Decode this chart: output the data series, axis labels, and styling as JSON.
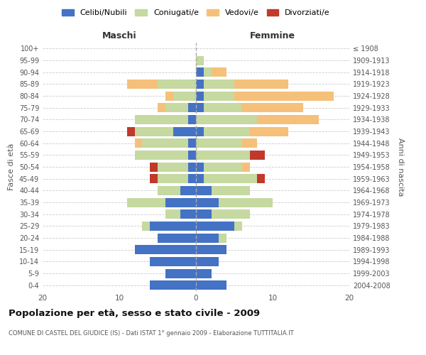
{
  "age_groups": [
    "0-4",
    "5-9",
    "10-14",
    "15-19",
    "20-24",
    "25-29",
    "30-34",
    "35-39",
    "40-44",
    "45-49",
    "50-54",
    "55-59",
    "60-64",
    "65-69",
    "70-74",
    "75-79",
    "80-84",
    "85-89",
    "90-94",
    "95-99",
    "100+"
  ],
  "birth_years": [
    "2004-2008",
    "1999-2003",
    "1994-1998",
    "1989-1993",
    "1984-1988",
    "1979-1983",
    "1974-1978",
    "1969-1973",
    "1964-1968",
    "1959-1963",
    "1954-1958",
    "1949-1953",
    "1944-1948",
    "1939-1943",
    "1934-1938",
    "1929-1933",
    "1924-1928",
    "1919-1923",
    "1914-1918",
    "1909-1913",
    "≤ 1908"
  ],
  "colors": {
    "celibi": "#4472c4",
    "coniugati": "#c5d9a0",
    "vedovi": "#f5c07a",
    "divorziati": "#c0392b"
  },
  "maschi": {
    "celibi": [
      6,
      4,
      6,
      8,
      5,
      6,
      2,
      4,
      2,
      1,
      1,
      1,
      1,
      3,
      1,
      1,
      0,
      0,
      0,
      0,
      0
    ],
    "coniugati": [
      0,
      0,
      0,
      0,
      0,
      1,
      2,
      5,
      3,
      4,
      4,
      7,
      6,
      5,
      7,
      3,
      3,
      5,
      0,
      0,
      0
    ],
    "vedovi": [
      0,
      0,
      0,
      0,
      0,
      0,
      0,
      0,
      0,
      0,
      0,
      0,
      1,
      0,
      0,
      1,
      1,
      4,
      0,
      0,
      0
    ],
    "divorziati": [
      0,
      0,
      0,
      0,
      0,
      0,
      0,
      0,
      0,
      1,
      1,
      0,
      0,
      1,
      0,
      0,
      0,
      0,
      0,
      0,
      0
    ]
  },
  "femmine": {
    "celibi": [
      4,
      2,
      3,
      4,
      3,
      5,
      2,
      3,
      2,
      1,
      1,
      0,
      0,
      1,
      0,
      1,
      1,
      1,
      1,
      0,
      0
    ],
    "coniugati": [
      0,
      0,
      0,
      0,
      1,
      1,
      5,
      7,
      5,
      7,
      5,
      7,
      6,
      6,
      8,
      5,
      4,
      4,
      1,
      1,
      0
    ],
    "vedovi": [
      0,
      0,
      0,
      0,
      0,
      0,
      0,
      0,
      0,
      0,
      1,
      0,
      2,
      5,
      8,
      8,
      13,
      7,
      2,
      0,
      0
    ],
    "divorziati": [
      0,
      0,
      0,
      0,
      0,
      0,
      0,
      0,
      0,
      1,
      0,
      2,
      0,
      0,
      0,
      0,
      0,
      0,
      0,
      0,
      0
    ]
  },
  "title": "Popolazione per età, sesso e stato civile - 2009",
  "subtitle": "COMUNE DI CASTEL DEL GIUDICE (IS) - Dati ISTAT 1° gennaio 2009 - Elaborazione TUTTITALIA.IT",
  "xlabel_left": "Maschi",
  "xlabel_right": "Femmine",
  "ylabel_left": "Fasce di età",
  "ylabel_right": "Anni di nascita",
  "xlim": 20,
  "legend_labels": [
    "Celibi/Nubili",
    "Coniugati/e",
    "Vedovi/e",
    "Divorziati/e"
  ]
}
